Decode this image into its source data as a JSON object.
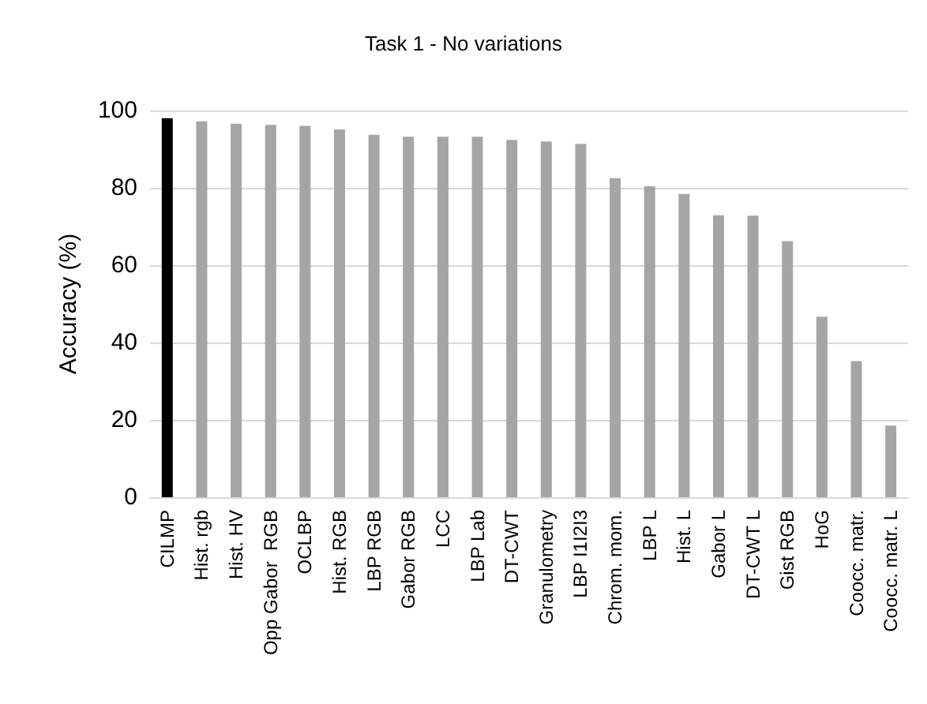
{
  "chart_data": {
    "type": "bar",
    "title": "Task 1 - No variations",
    "ylabel": "Accuracy (%)",
    "categories": [
      "CILMP",
      "Hist. rgb",
      "Hist. HV",
      "Opp Gabor  RGB",
      "OCLBP",
      "Hist. RGB",
      "LBP RGB",
      "Gabor RGB",
      "LCC",
      "LBP Lab",
      "DT-CWT",
      "Granulometry",
      "LBP I1I2I3",
      "Chrom. mom.",
      "LBP L",
      "Hist. L",
      "Gabor L",
      "DT-CWT L",
      "Gist RGB",
      "HoG",
      "Coocc. matr.",
      "Coocc. matr. L"
    ],
    "values": [
      98,
      97.2,
      96.6,
      96.3,
      96,
      95.1,
      93.7,
      93.2,
      93.2,
      93.2,
      92.4,
      92,
      91.4,
      82.5,
      80.4,
      78.4,
      72.9,
      72.8,
      66.2,
      46.7,
      35.2,
      18.5
    ],
    "colors": [
      "#000000",
      "#a5a5a5",
      "#a5a5a5",
      "#a5a5a5",
      "#a5a5a5",
      "#a5a5a5",
      "#a5a5a5",
      "#a5a5a5",
      "#a5a5a5",
      "#a5a5a5",
      "#a5a5a5",
      "#a5a5a5",
      "#a5a5a5",
      "#a5a5a5",
      "#a5a5a5",
      "#a5a5a5",
      "#a5a5a5",
      "#a5a5a5",
      "#a5a5a5",
      "#a5a5a5",
      "#a5a5a5",
      "#a5a5a5"
    ],
    "ylim": [
      0,
      100
    ],
    "yticks": [
      0,
      20,
      40,
      60,
      80,
      100
    ],
    "grid": "y"
  }
}
